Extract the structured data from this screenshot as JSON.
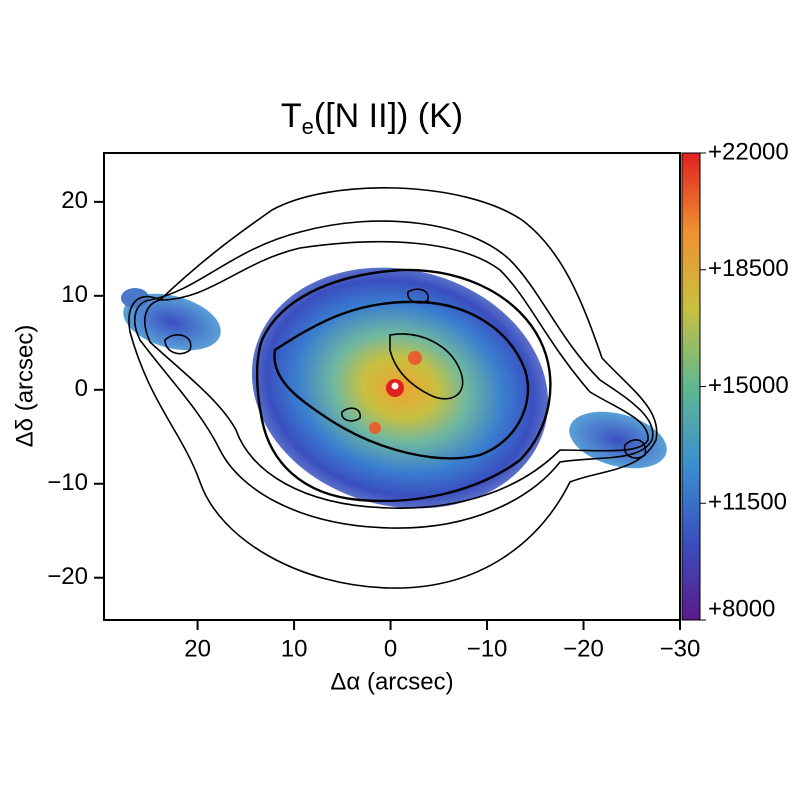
{
  "chart_data": {
    "type": "heatmap",
    "title": {
      "main": "T",
      "subscript": "e",
      "rest": "([N II]) (K)"
    },
    "xlabel": "Δα (arcsec)",
    "ylabel": "Δδ (arcsec)",
    "xlim": [
      29.7,
      -30
    ],
    "ylim": [
      -24.5,
      25.2
    ],
    "xticks": [
      20,
      10,
      0,
      {
        "value": -10,
        "label": "−10"
      },
      {
        "value": -20,
        "label": "−20"
      },
      {
        "value": -30,
        "label": "−30"
      }
    ],
    "yticks": [
      20,
      10,
      0,
      {
        "value": -10,
        "label": "−10"
      },
      {
        "value": -20,
        "label": "−20"
      }
    ],
    "colorbar": {
      "lim": [
        8000,
        22000
      ],
      "ticks": [
        {
          "value": 22000,
          "label": "+22000"
        },
        {
          "value": 18500,
          "label": "+18500"
        },
        {
          "value": 15000,
          "label": "+15000"
        },
        {
          "value": 11500,
          "label": "+11500"
        },
        {
          "value": 8000,
          "label": "+8000"
        }
      ],
      "colors": [
        "#5a1a8a",
        "#3a4fc0",
        "#3a90d0",
        "#60b890",
        "#c8c040",
        "#f09030",
        "#e02020"
      ]
    }
  }
}
